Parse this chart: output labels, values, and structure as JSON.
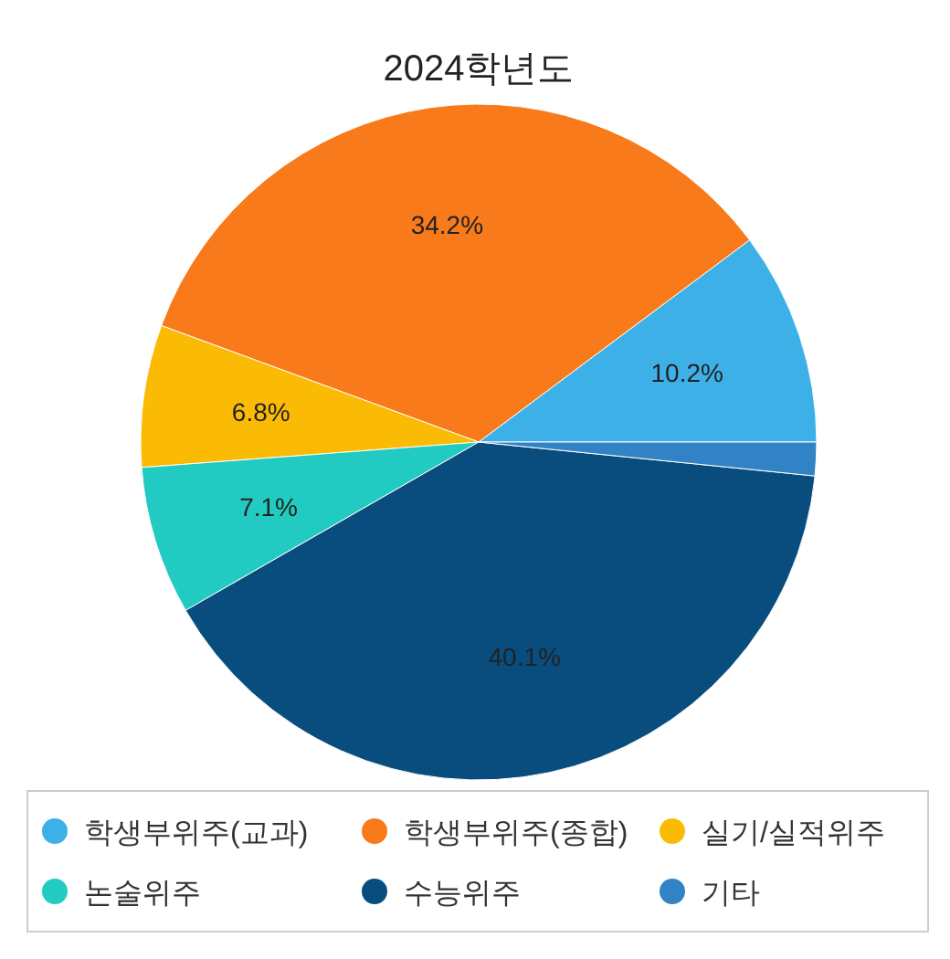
{
  "chart_data": {
    "type": "pie",
    "title": "2024학년도",
    "categories": [
      "학생부위주(교과)",
      "학생부위주(종합)",
      "실기/실적위주",
      "논술위주",
      "수능위주",
      "기타"
    ],
    "values": [
      10.2,
      34.2,
      6.8,
      7.1,
      40.1,
      1.6
    ],
    "colors": [
      "#3eb0e8",
      "#f87a1a",
      "#fbbb05",
      "#22cbc1",
      "#094d7e",
      "#3283c6"
    ],
    "value_labels": [
      "10.2%",
      "34.2%",
      "6.8%",
      "7.1%",
      "40.1%",
      null
    ],
    "legend": "bottom"
  }
}
